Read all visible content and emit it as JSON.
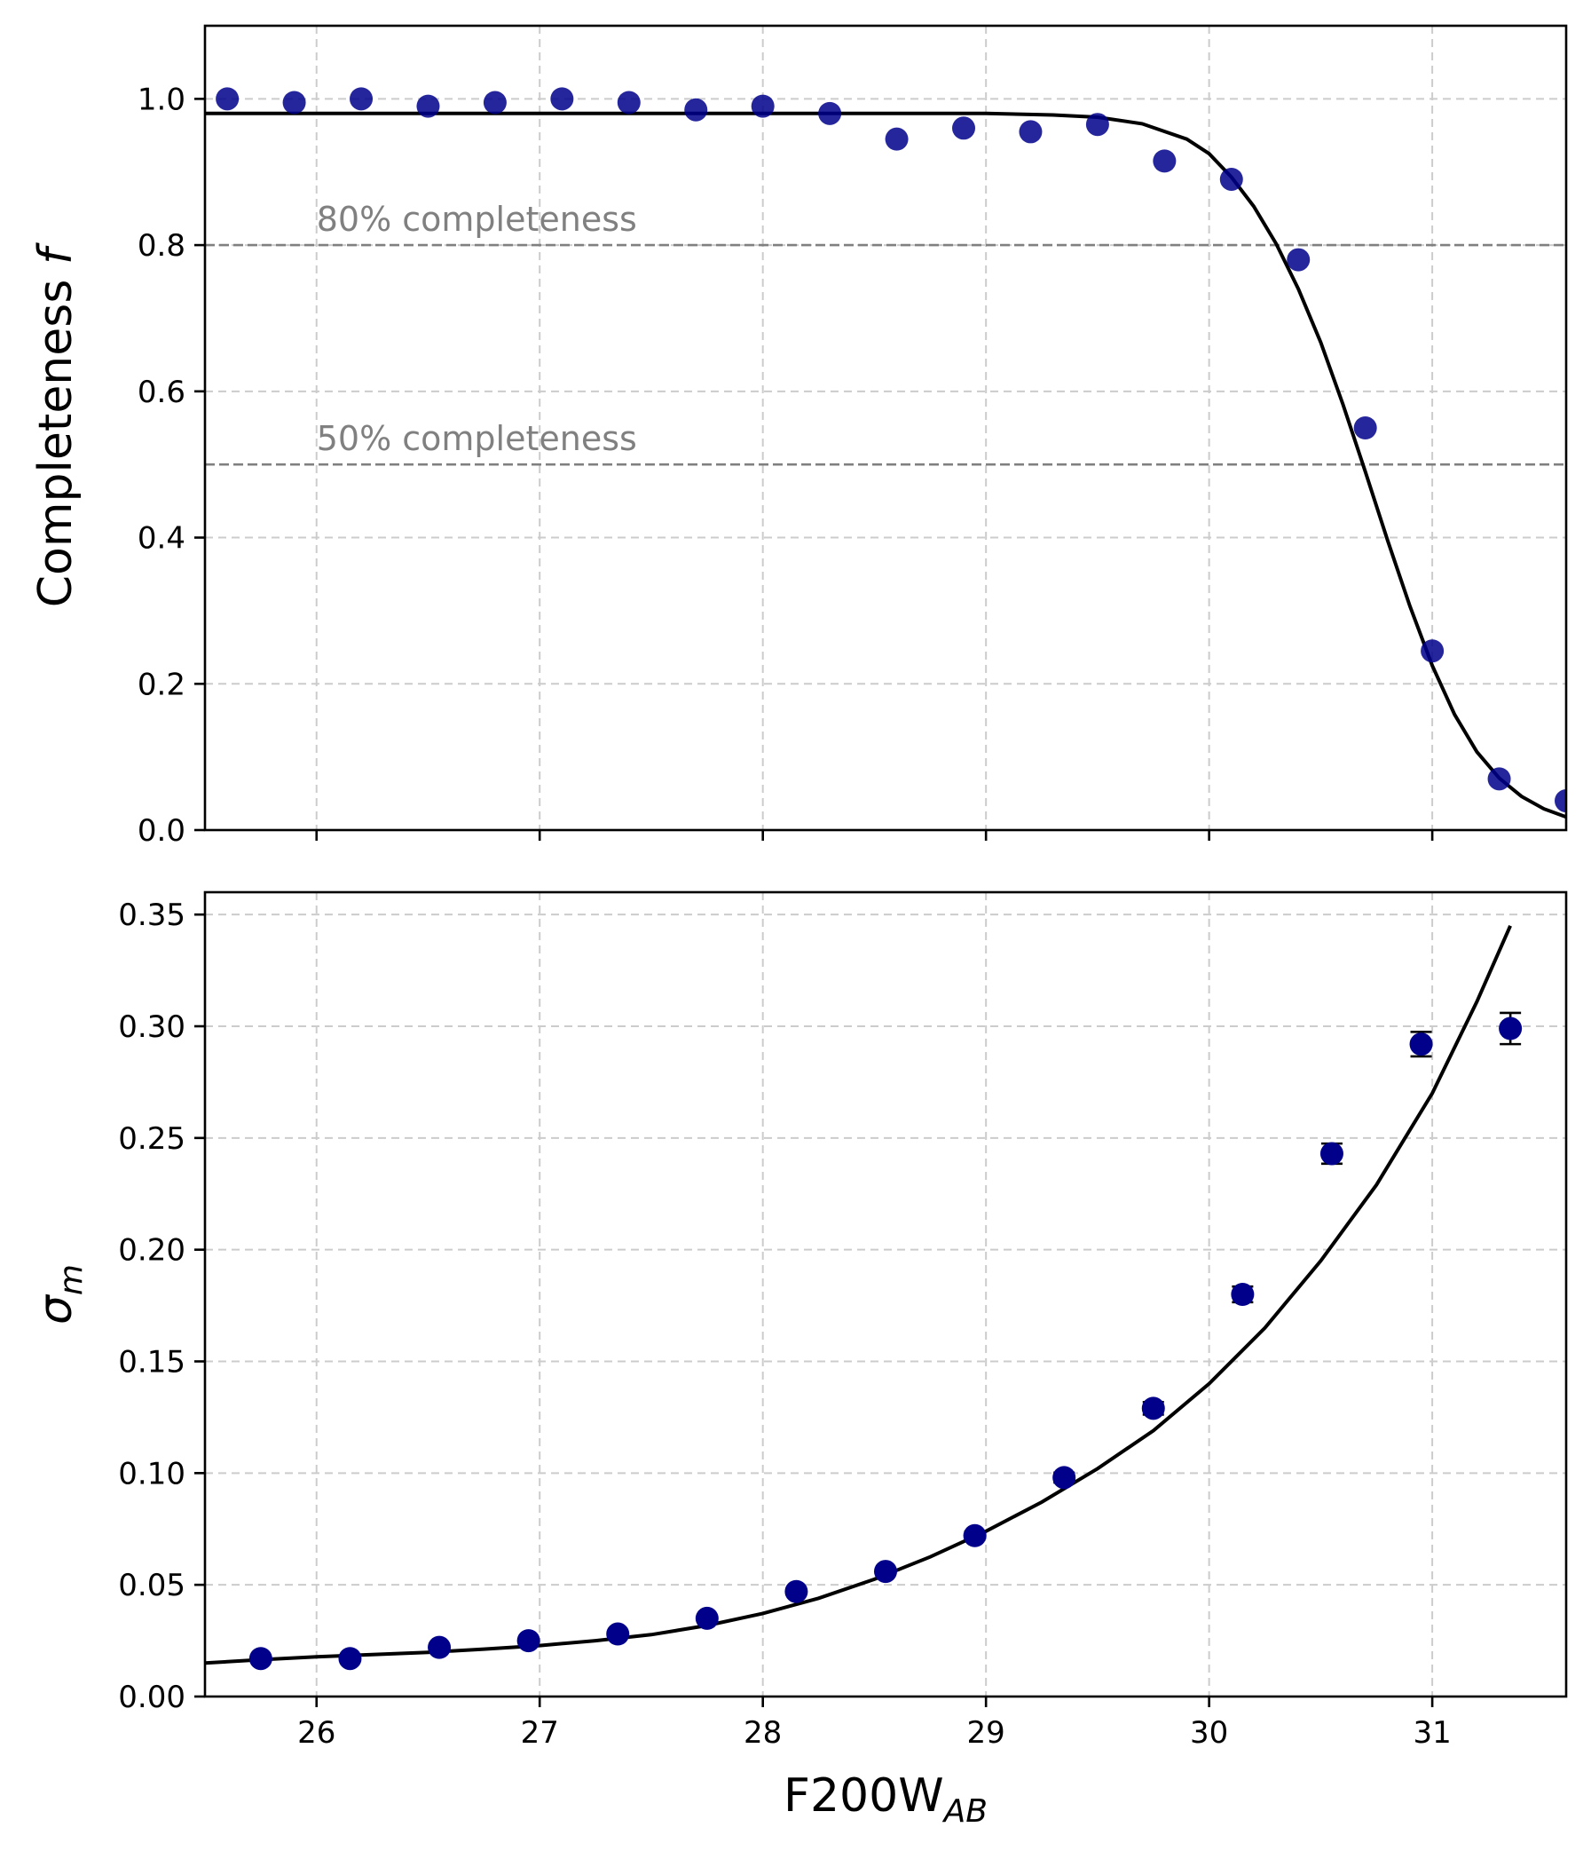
{
  "chart_data": [
    {
      "type": "scatter",
      "title": "",
      "xlabel": "",
      "ylabel": "Completeness f",
      "ylabel_main": "Completeness ",
      "ylabel_italic": "f",
      "xlim": [
        25.5,
        31.6
      ],
      "ylim": [
        0.0,
        1.1
      ],
      "x_ticks": [
        26,
        27,
        28,
        29,
        30,
        31
      ],
      "y_ticks": [
        0.0,
        0.2,
        0.4,
        0.6,
        0.8,
        1.0
      ],
      "y_tick_labels": [
        "0.0",
        "0.2",
        "0.4",
        "0.6",
        "0.8",
        "1.0"
      ],
      "grid": true,
      "marker_color": "#00008b",
      "fit_color": "#000000",
      "points": {
        "x": [
          25.6,
          25.9,
          26.2,
          26.5,
          26.8,
          27.1,
          27.4,
          27.7,
          28.0,
          28.3,
          28.6,
          28.9,
          29.2,
          29.5,
          29.8,
          30.1,
          30.4,
          30.7,
          31.0,
          31.3,
          31.6
        ],
        "y": [
          1.0,
          0.995,
          1.0,
          0.99,
          0.995,
          1.0,
          0.995,
          0.985,
          0.99,
          0.98,
          0.945,
          0.96,
          0.955,
          0.965,
          0.915,
          0.89,
          0.78,
          0.55,
          0.245,
          0.07,
          0.04
        ]
      },
      "fit_curve": {
        "x": [
          25.5,
          26.0,
          26.5,
          27.0,
          27.5,
          28.0,
          28.5,
          29.0,
          29.3,
          29.5,
          29.7,
          29.9,
          30.0,
          30.1,
          30.2,
          30.3,
          30.4,
          30.5,
          30.6,
          30.7,
          30.8,
          30.9,
          31.0,
          31.1,
          31.2,
          31.3,
          31.4,
          31.5,
          31.6
        ],
        "y": [
          0.98,
          0.98,
          0.98,
          0.98,
          0.98,
          0.98,
          0.98,
          0.98,
          0.978,
          0.975,
          0.966,
          0.945,
          0.925,
          0.893,
          0.853,
          0.802,
          0.74,
          0.667,
          0.582,
          0.49,
          0.396,
          0.306,
          0.225,
          0.158,
          0.107,
          0.071,
          0.046,
          0.029,
          0.018
        ]
      },
      "reference_lines": [
        {
          "y": 0.8,
          "label": "80% completeness"
        },
        {
          "y": 0.5,
          "label": "50% completeness"
        }
      ]
    },
    {
      "type": "scatter",
      "title": "",
      "xlabel": "F200WAB",
      "xlabel_main": "F200W",
      "xlabel_sub": "AB",
      "ylabel": "σm",
      "ylabel_main": "σ",
      "ylabel_sub": "m",
      "xlim": [
        25.5,
        31.6
      ],
      "ylim": [
        0.0,
        0.36
      ],
      "x_ticks": [
        26,
        27,
        28,
        29,
        30,
        31
      ],
      "x_tick_labels": [
        "26",
        "27",
        "28",
        "29",
        "30",
        "31"
      ],
      "y_ticks": [
        0.0,
        0.05,
        0.1,
        0.15,
        0.2,
        0.25,
        0.3,
        0.35
      ],
      "y_tick_labels": [
        "0.00",
        "0.05",
        "0.10",
        "0.15",
        "0.20",
        "0.25",
        "0.30",
        "0.35"
      ],
      "grid": true,
      "marker_color": "#00008b",
      "fit_color": "#000000",
      "points": {
        "x": [
          25.75,
          26.15,
          26.55,
          26.95,
          27.35,
          27.75,
          28.15,
          28.55,
          28.95,
          29.35,
          29.75,
          30.15,
          30.55,
          30.95,
          31.35
        ],
        "y": [
          0.017,
          0.017,
          0.022,
          0.025,
          0.028,
          0.035,
          0.047,
          0.056,
          0.072,
          0.098,
          0.129,
          0.18,
          0.243,
          0.292,
          0.299
        ],
        "yerr": [
          0.0005,
          0.0005,
          0.0006,
          0.0007,
          0.0008,
          0.001,
          0.0012,
          0.0015,
          0.0018,
          0.0022,
          0.0028,
          0.0035,
          0.0045,
          0.0055,
          0.007
        ]
      },
      "fit_curve": {
        "x": [
          25.5,
          25.75,
          26.0,
          26.25,
          26.5,
          26.75,
          27.0,
          27.25,
          27.5,
          27.75,
          28.0,
          28.25,
          28.5,
          28.75,
          29.0,
          29.25,
          29.5,
          29.75,
          30.0,
          30.25,
          30.5,
          30.75,
          31.0,
          31.2,
          31.35
        ],
        "y": [
          0.015,
          0.0165,
          0.0178,
          0.0188,
          0.0198,
          0.0212,
          0.0228,
          0.025,
          0.0277,
          0.0318,
          0.0372,
          0.044,
          0.0525,
          0.0625,
          0.074,
          0.087,
          0.102,
          0.119,
          0.14,
          0.165,
          0.195,
          0.229,
          0.27,
          0.311,
          0.345
        ]
      }
    }
  ]
}
